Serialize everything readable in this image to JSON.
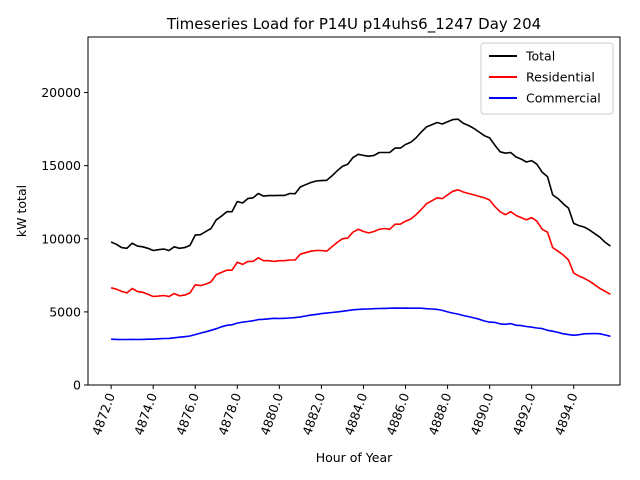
{
  "chart_data": {
    "type": "line",
    "title": "Timeseries Load for P14U p14uhs6_1247  Day 204",
    "xlabel": "Hour of Year",
    "ylabel": "kW total",
    "xlim": [
      4870.9,
      4896.2
    ],
    "ylim": [
      0,
      23800
    ],
    "x_ticks": [
      4872,
      4874,
      4876,
      4878,
      4880,
      4882,
      4884,
      4886,
      4888,
      4890,
      4892,
      4894
    ],
    "x_tick_labels": [
      "4872.0",
      "4874.0",
      "4876.0",
      "4878.0",
      "4880.0",
      "4882.0",
      "4884.0",
      "4886.0",
      "4888.0",
      "4890.0",
      "4892.0",
      "4894.0"
    ],
    "y_ticks": [
      0,
      5000,
      10000,
      15000,
      20000
    ],
    "y_tick_labels": [
      "0",
      "5000",
      "10000",
      "15000",
      "20000"
    ],
    "legend_position": "top-right",
    "x": [
      4872.0,
      4872.25,
      4872.5,
      4872.75,
      4873.0,
      4873.25,
      4873.5,
      4873.75,
      4874.0,
      4874.25,
      4874.5,
      4874.75,
      4875.0,
      4875.25,
      4875.5,
      4875.75,
      4876.0,
      4876.25,
      4876.5,
      4876.75,
      4877.0,
      4877.25,
      4877.5,
      4877.75,
      4878.0,
      4878.25,
      4878.5,
      4878.75,
      4879.0,
      4879.25,
      4879.5,
      4879.75,
      4880.0,
      4880.25,
      4880.5,
      4880.75,
      4881.0,
      4881.25,
      4881.5,
      4881.75,
      4882.0,
      4882.25,
      4882.5,
      4882.75,
      4883.0,
      4883.25,
      4883.5,
      4883.75,
      4884.0,
      4884.25,
      4884.5,
      4884.75,
      4885.0,
      4885.25,
      4885.5,
      4885.75,
      4886.0,
      4886.25,
      4886.5,
      4886.75,
      4887.0,
      4887.25,
      4887.5,
      4887.75,
      4888.0,
      4888.25,
      4888.5,
      4888.75,
      4889.0,
      4889.25,
      4889.5,
      4889.75,
      4890.0,
      4890.25,
      4890.5,
      4890.75,
      4891.0,
      4891.25,
      4891.5,
      4891.75,
      4892.0,
      4892.25,
      4892.5,
      4892.75,
      4893.0,
      4893.25,
      4893.5,
      4893.75,
      4894.0,
      4894.25,
      4894.5,
      4894.75,
      4895.0,
      4895.25,
      4895.5,
      4895.75
    ],
    "series": [
      {
        "name": "Total",
        "color": "#000000",
        "values": [
          9780,
          9620,
          9400,
          9350,
          9700,
          9500,
          9450,
          9350,
          9200,
          9250,
          9300,
          9200,
          9450,
          9350,
          9400,
          9550,
          10250,
          10280,
          10500,
          10700,
          11300,
          11550,
          11850,
          11850,
          12550,
          12450,
          12750,
          12800,
          13100,
          12920,
          12950,
          12950,
          12970,
          12970,
          13100,
          13080,
          13550,
          13700,
          13850,
          13950,
          13980,
          14000,
          14300,
          14650,
          14950,
          15100,
          15550,
          15780,
          15700,
          15650,
          15700,
          15900,
          15900,
          15900,
          16200,
          16200,
          16450,
          16600,
          16900,
          17300,
          17650,
          17800,
          17950,
          17850,
          18000,
          18150,
          18180,
          17900,
          17750,
          17550,
          17300,
          17050,
          16900,
          16400,
          15950,
          15850,
          15900,
          15600,
          15450,
          15250,
          15350,
          15100,
          14550,
          14250,
          13000,
          12750,
          12400,
          12100,
          11050,
          10900,
          10800,
          10600,
          10350,
          10100,
          9750,
          9500
        ]
      },
      {
        "name": "Residential",
        "color": "#ff0000",
        "values": [
          6650,
          6550,
          6400,
          6300,
          6600,
          6400,
          6350,
          6200,
          6050,
          6080,
          6120,
          6050,
          6250,
          6100,
          6150,
          6300,
          6850,
          6800,
          6900,
          7050,
          7550,
          7700,
          7850,
          7850,
          8400,
          8250,
          8450,
          8450,
          8700,
          8500,
          8500,
          8450,
          8500,
          8500,
          8550,
          8550,
          8950,
          9050,
          9150,
          9200,
          9200,
          9150,
          9450,
          9750,
          10000,
          10050,
          10450,
          10650,
          10500,
          10400,
          10500,
          10650,
          10700,
          10650,
          11000,
          11000,
          11200,
          11350,
          11650,
          12000,
          12400,
          12600,
          12800,
          12750,
          13000,
          13250,
          13350,
          13200,
          13100,
          13000,
          12900,
          12800,
          12650,
          12200,
          11850,
          11650,
          11850,
          11600,
          11450,
          11300,
          11450,
          11200,
          10650,
          10450,
          9400,
          9150,
          8900,
          8550,
          7650,
          7450,
          7300,
          7100,
          6850,
          6600,
          6400,
          6200
        ]
      },
      {
        "name": "Commercial",
        "color": "#0000ff",
        "values": [
          3130,
          3120,
          3110,
          3110,
          3120,
          3110,
          3120,
          3130,
          3130,
          3160,
          3180,
          3190,
          3230,
          3270,
          3300,
          3350,
          3450,
          3550,
          3640,
          3740,
          3850,
          3980,
          4080,
          4120,
          4230,
          4300,
          4340,
          4400,
          4470,
          4490,
          4530,
          4560,
          4550,
          4560,
          4580,
          4610,
          4660,
          4720,
          4780,
          4830,
          4880,
          4920,
          4960,
          5000,
          5040,
          5090,
          5140,
          5170,
          5190,
          5200,
          5220,
          5230,
          5240,
          5250,
          5260,
          5250,
          5260,
          5250,
          5250,
          5250,
          5220,
          5200,
          5170,
          5100,
          5000,
          4920,
          4850,
          4750,
          4680,
          4590,
          4500,
          4380,
          4300,
          4280,
          4180,
          4150,
          4200,
          4090,
          4060,
          4000,
          3950,
          3900,
          3860,
          3740,
          3680,
          3600,
          3500,
          3450,
          3400,
          3440,
          3500,
          3510,
          3520,
          3500,
          3420,
          3330
        ]
      }
    ]
  }
}
